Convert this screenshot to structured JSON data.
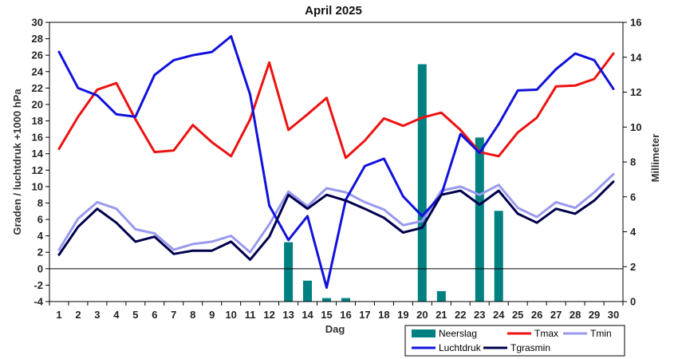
{
  "chart_data": {
    "type": "line",
    "title": "April 2025",
    "xlabel": "Dag",
    "ylabel_left": "Graden / luchtdruk +1000 hPa",
    "ylabel_right": "Millimeter",
    "x": [
      1,
      2,
      3,
      4,
      5,
      6,
      7,
      8,
      9,
      10,
      11,
      12,
      13,
      14,
      15,
      16,
      17,
      18,
      19,
      20,
      21,
      22,
      23,
      24,
      25,
      26,
      27,
      28,
      29,
      30
    ],
    "ylim_left": [
      -4,
      30
    ],
    "ylim_right": [
      0,
      16
    ],
    "y_ticks_left": [
      -4,
      -2,
      0,
      2,
      4,
      6,
      8,
      10,
      12,
      14,
      16,
      18,
      20,
      22,
      24,
      26,
      28,
      30
    ],
    "y_ticks_right": [
      0,
      2,
      4,
      6,
      8,
      10,
      12,
      14,
      16
    ],
    "grid": false,
    "legend_position": "bottom-right",
    "bar_series": {
      "name": "Neerslag",
      "axis": "right",
      "color": "#008080",
      "values": [
        0,
        0,
        0,
        0,
        0,
        0,
        0,
        0,
        0,
        0,
        0,
        0,
        3.4,
        1.2,
        0.2,
        0.2,
        0,
        0,
        0,
        13.6,
        0.6,
        0,
        9.4,
        5.2,
        0,
        0,
        0,
        0,
        0,
        0
      ]
    },
    "series": [
      {
        "name": "Tmax",
        "axis": "left",
        "color": "#ee1111",
        "values": [
          14.6,
          18.5,
          21.8,
          22.6,
          18.2,
          14.2,
          14.4,
          17.5,
          15.4,
          13.7,
          18.2,
          25.1,
          16.9,
          18.8,
          20.8,
          13.5,
          15.6,
          18.3,
          17.4,
          18.4,
          19.0,
          16.9,
          14.2,
          13.7,
          16.6,
          18.4,
          22.2,
          22.3,
          23.1,
          26.2
        ]
      },
      {
        "name": "Tmin",
        "axis": "left",
        "color": "#9999ee",
        "values": [
          2.3,
          6.1,
          8.1,
          7.3,
          4.8,
          4.3,
          2.3,
          3.0,
          3.3,
          4.0,
          2.0,
          5.4,
          9.4,
          7.6,
          9.8,
          9.3,
          8.1,
          7.2,
          5.3,
          5.8,
          9.5,
          10.0,
          9.0,
          10.2,
          7.4,
          6.3,
          8.1,
          7.4,
          9.3,
          11.5
        ]
      },
      {
        "name": "Luchtdruk",
        "axis": "left",
        "color": "#1111dd",
        "values": [
          26.4,
          22.0,
          21.1,
          18.8,
          18.5,
          23.6,
          25.4,
          26.0,
          26.4,
          28.3,
          21.2,
          7.7,
          3.5,
          6.4,
          -2.3,
          8.4,
          12.5,
          13.4,
          8.8,
          6.4,
          9.0,
          16.4,
          14.1,
          17.6,
          21.7,
          21.8,
          24.3,
          26.2,
          25.4,
          21.9
        ]
      },
      {
        "name": "Tgrasmin",
        "axis": "left",
        "color": "#00004d",
        "values": [
          1.7,
          5.1,
          7.3,
          5.6,
          3.3,
          3.9,
          1.8,
          2.2,
          2.2,
          3.3,
          1.1,
          3.9,
          9.0,
          7.3,
          9.0,
          8.3,
          7.3,
          6.2,
          4.4,
          5.0,
          9.0,
          9.5,
          7.8,
          9.5,
          6.7,
          5.6,
          7.3,
          6.7,
          8.3,
          10.6
        ]
      }
    ]
  }
}
